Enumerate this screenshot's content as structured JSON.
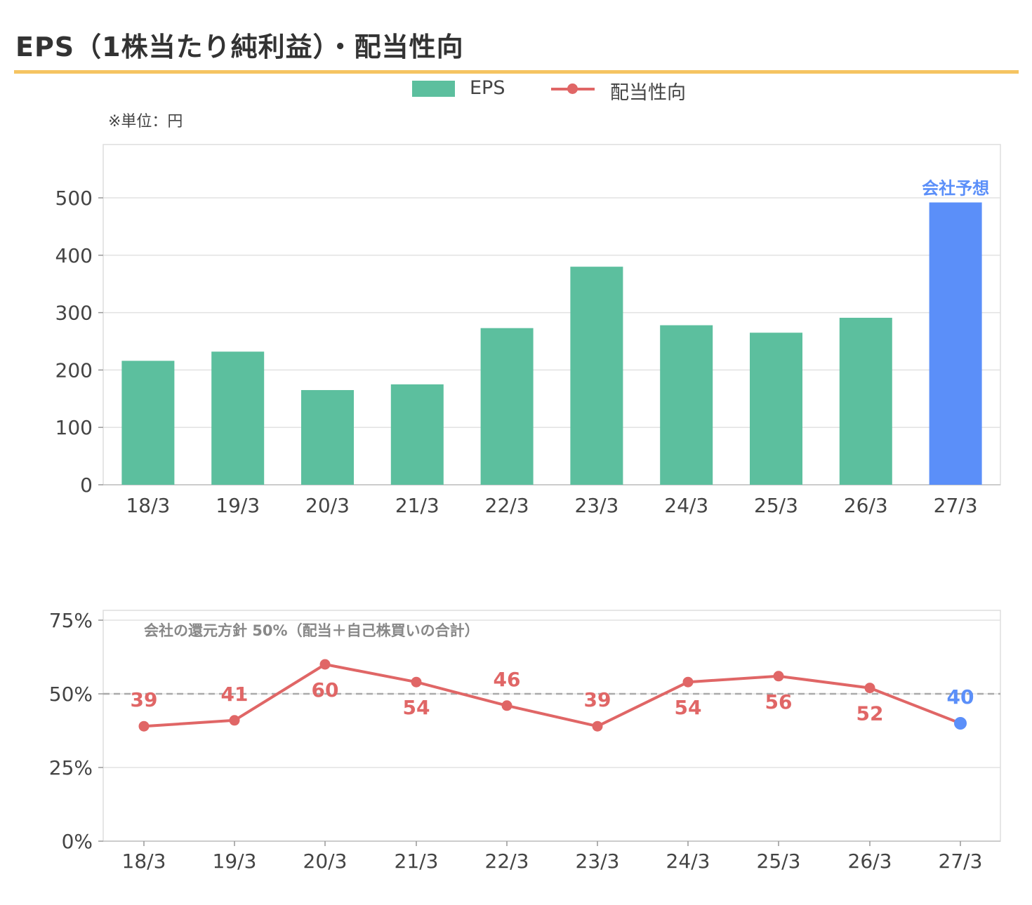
{
  "title": "EPS（1株当たり純利益）・配当性向",
  "unit_note": "※単位：円",
  "legend": {
    "eps": "EPS",
    "payout": "配当性向"
  },
  "colors": {
    "eps_bar": "#5cbf9e",
    "forecast": "#5b8ff9",
    "payout_line": "#e06666",
    "accent_rule": "#f5c462"
  },
  "forecast_label": "会社予想",
  "policy_note": "会社の還元方針 50%（配当＋自己株買いの合計）",
  "chart_data": [
    {
      "type": "bar",
      "categories": [
        "18/3",
        "19/3",
        "20/3",
        "21/3",
        "22/3",
        "23/3",
        "24/3",
        "25/3",
        "26/3",
        "27/3"
      ],
      "series": [
        {
          "name": "EPS",
          "values": [
            216,
            232,
            165,
            175,
            273,
            380,
            278,
            265,
            291,
            492
          ]
        }
      ],
      "forecast_index": 9,
      "ylim": [
        0,
        500
      ],
      "yticks": [
        0,
        100,
        200,
        300,
        400,
        500
      ],
      "ytick_labels": [
        "0",
        "100",
        "200",
        "300",
        "400",
        "500"
      ],
      "grid": true
    },
    {
      "type": "line",
      "categories": [
        "18/3",
        "19/3",
        "20/3",
        "21/3",
        "22/3",
        "23/3",
        "24/3",
        "25/3",
        "26/3",
        "27/3"
      ],
      "series": [
        {
          "name": "配当性向",
          "values": [
            39,
            41,
            60,
            54,
            46,
            39,
            54,
            56,
            52,
            40
          ]
        }
      ],
      "labels": [
        "39",
        "41",
        "60",
        "54",
        "46",
        "39",
        "54",
        "56",
        "52",
        "40"
      ],
      "forecast_index": 9,
      "ylim": [
        0,
        75
      ],
      "yticks": [
        0,
        25,
        50,
        75
      ],
      "ytick_labels": [
        "0%",
        "25%",
        "50%",
        "75%"
      ],
      "reference_line": 50,
      "grid": true
    }
  ]
}
